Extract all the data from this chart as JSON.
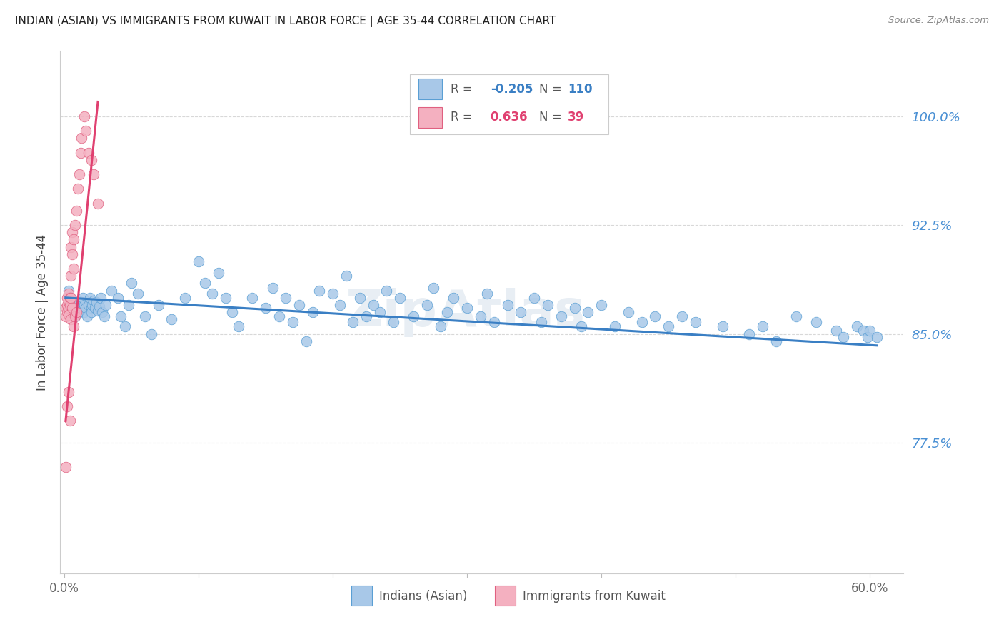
{
  "title": "INDIAN (ASIAN) VS IMMIGRANTS FROM KUWAIT IN LABOR FORCE | AGE 35-44 CORRELATION CHART",
  "source": "Source: ZipAtlas.com",
  "xlabel_blue": "Indians (Asian)",
  "xlabel_pink": "Immigrants from Kuwait",
  "ylabel": "In Labor Force | Age 35-44",
  "legend_blue_r": "-0.205",
  "legend_blue_n": "110",
  "legend_pink_r": "0.636",
  "legend_pink_n": "39",
  "watermark": "ZipAtlas",
  "xlim_min": -0.003,
  "xlim_max": 0.625,
  "ylim_min": 0.685,
  "ylim_max": 1.045,
  "yticks": [
    0.775,
    0.85,
    0.925,
    1.0
  ],
  "ytick_labels": [
    "77.5%",
    "85.0%",
    "92.5%",
    "100.0%"
  ],
  "blue_scatter_color": "#a8c8e8",
  "blue_edge_color": "#5a9fd4",
  "pink_scatter_color": "#f4b0c0",
  "pink_edge_color": "#e06080",
  "blue_line_color": "#3a7fc4",
  "pink_line_color": "#e04070",
  "title_color": "#222222",
  "ylabel_color": "#444444",
  "tick_color_right": "#4a90d4",
  "background_color": "#ffffff",
  "grid_color": "#d8d8d8",
  "legend_text_color": "#555555",
  "watermark_color": "#e8eef4",
  "blue_x": [
    0.003,
    0.004,
    0.005,
    0.006,
    0.007,
    0.008,
    0.009,
    0.01,
    0.011,
    0.012,
    0.013,
    0.014,
    0.015,
    0.015,
    0.016,
    0.017,
    0.018,
    0.019,
    0.02,
    0.02,
    0.021,
    0.022,
    0.023,
    0.024,
    0.025,
    0.026,
    0.027,
    0.028,
    0.03,
    0.031,
    0.035,
    0.04,
    0.042,
    0.045,
    0.048,
    0.05,
    0.055,
    0.06,
    0.065,
    0.07,
    0.08,
    0.09,
    0.1,
    0.105,
    0.11,
    0.115,
    0.12,
    0.125,
    0.13,
    0.14,
    0.15,
    0.155,
    0.16,
    0.165,
    0.17,
    0.175,
    0.18,
    0.185,
    0.19,
    0.2,
    0.205,
    0.21,
    0.215,
    0.22,
    0.225,
    0.23,
    0.235,
    0.24,
    0.245,
    0.25,
    0.26,
    0.27,
    0.275,
    0.28,
    0.285,
    0.29,
    0.3,
    0.31,
    0.315,
    0.32,
    0.33,
    0.34,
    0.35,
    0.355,
    0.36,
    0.37,
    0.38,
    0.385,
    0.39,
    0.4,
    0.41,
    0.42,
    0.43,
    0.44,
    0.45,
    0.46,
    0.47,
    0.49,
    0.51,
    0.52,
    0.53,
    0.545,
    0.56,
    0.575,
    0.58,
    0.59,
    0.595,
    0.598,
    0.6,
    0.605
  ],
  "blue_y": [
    0.88,
    0.875,
    0.872,
    0.868,
    0.865,
    0.862,
    0.87,
    0.873,
    0.865,
    0.868,
    0.872,
    0.875,
    0.87,
    0.865,
    0.868,
    0.862,
    0.87,
    0.875,
    0.868,
    0.865,
    0.87,
    0.873,
    0.868,
    0.872,
    0.866,
    0.869,
    0.875,
    0.865,
    0.862,
    0.87,
    0.88,
    0.875,
    0.862,
    0.855,
    0.87,
    0.885,
    0.878,
    0.862,
    0.85,
    0.87,
    0.86,
    0.875,
    0.9,
    0.885,
    0.878,
    0.892,
    0.875,
    0.865,
    0.855,
    0.875,
    0.868,
    0.882,
    0.862,
    0.875,
    0.858,
    0.87,
    0.845,
    0.865,
    0.88,
    0.878,
    0.87,
    0.89,
    0.858,
    0.875,
    0.862,
    0.87,
    0.865,
    0.88,
    0.858,
    0.875,
    0.862,
    0.87,
    0.882,
    0.855,
    0.865,
    0.875,
    0.868,
    0.862,
    0.878,
    0.858,
    0.87,
    0.865,
    0.875,
    0.858,
    0.87,
    0.862,
    0.868,
    0.855,
    0.865,
    0.87,
    0.855,
    0.865,
    0.858,
    0.862,
    0.855,
    0.862,
    0.858,
    0.855,
    0.85,
    0.855,
    0.845,
    0.862,
    0.858,
    0.852,
    0.848,
    0.855,
    0.852,
    0.848,
    0.852,
    0.848
  ],
  "pink_x": [
    0.001,
    0.001,
    0.002,
    0.002,
    0.002,
    0.003,
    0.003,
    0.003,
    0.003,
    0.004,
    0.004,
    0.005,
    0.005,
    0.005,
    0.006,
    0.006,
    0.007,
    0.007,
    0.008,
    0.009,
    0.01,
    0.011,
    0.012,
    0.013,
    0.015,
    0.016,
    0.018,
    0.02,
    0.022,
    0.025,
    0.001,
    0.002,
    0.003,
    0.004,
    0.005,
    0.006,
    0.007,
    0.008,
    0.009
  ],
  "pink_y": [
    0.868,
    0.862,
    0.875,
    0.87,
    0.865,
    0.878,
    0.873,
    0.868,
    0.863,
    0.875,
    0.87,
    0.91,
    0.89,
    0.875,
    0.92,
    0.905,
    0.915,
    0.895,
    0.925,
    0.935,
    0.95,
    0.96,
    0.975,
    0.985,
    1.0,
    0.99,
    0.975,
    0.97,
    0.96,
    0.94,
    0.758,
    0.8,
    0.81,
    0.79,
    0.86,
    0.868,
    0.855,
    0.862,
    0.865
  ],
  "blue_trend_x": [
    0.001,
    0.605
  ],
  "blue_trend_y": [
    0.875,
    0.842
  ],
  "pink_trend_x": [
    0.001,
    0.025
  ],
  "pink_trend_y": [
    0.79,
    1.01
  ]
}
